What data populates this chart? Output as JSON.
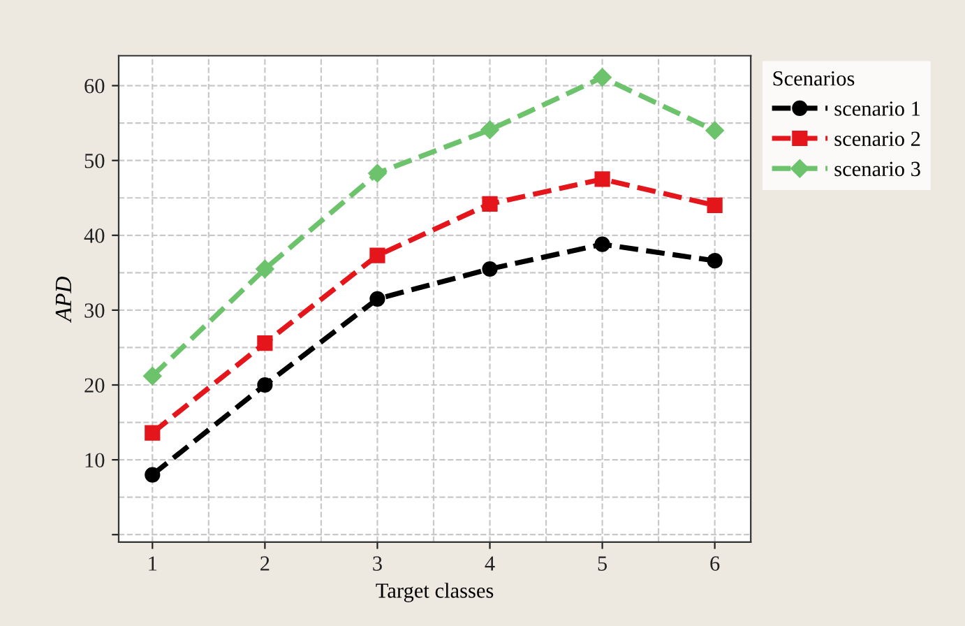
{
  "chart_data": {
    "type": "line",
    "xlabel": "Target classes",
    "ylabel": "APD",
    "legend_title": "Scenarios",
    "x": [
      1,
      2,
      3,
      4,
      5,
      6
    ],
    "series": [
      {
        "name": "scenario 1",
        "color": "#000000",
        "marker": "circle",
        "values": [
          8.0,
          20.0,
          31.5,
          35.5,
          38.8,
          36.6
        ]
      },
      {
        "name": "scenario 2",
        "color": "#e4161b",
        "marker": "square",
        "values": [
          13.6,
          25.6,
          37.3,
          44.2,
          47.5,
          44.0
        ]
      },
      {
        "name": "scenario 3",
        "color": "#6cc36c",
        "marker": "diamond",
        "values": [
          21.2,
          35.5,
          48.3,
          54.1,
          61.1,
          54.0
        ]
      }
    ],
    "xlim": [
      0.7,
      6.32
    ],
    "xticks": [
      1,
      2,
      3,
      4,
      5,
      6
    ],
    "ylim": [
      -1,
      64
    ],
    "yticks": [
      {
        "value": 0,
        "label": null
      },
      10,
      20,
      30,
      40,
      50,
      60
    ],
    "grid": true,
    "legend": "top right",
    "line_style": "dashed"
  }
}
